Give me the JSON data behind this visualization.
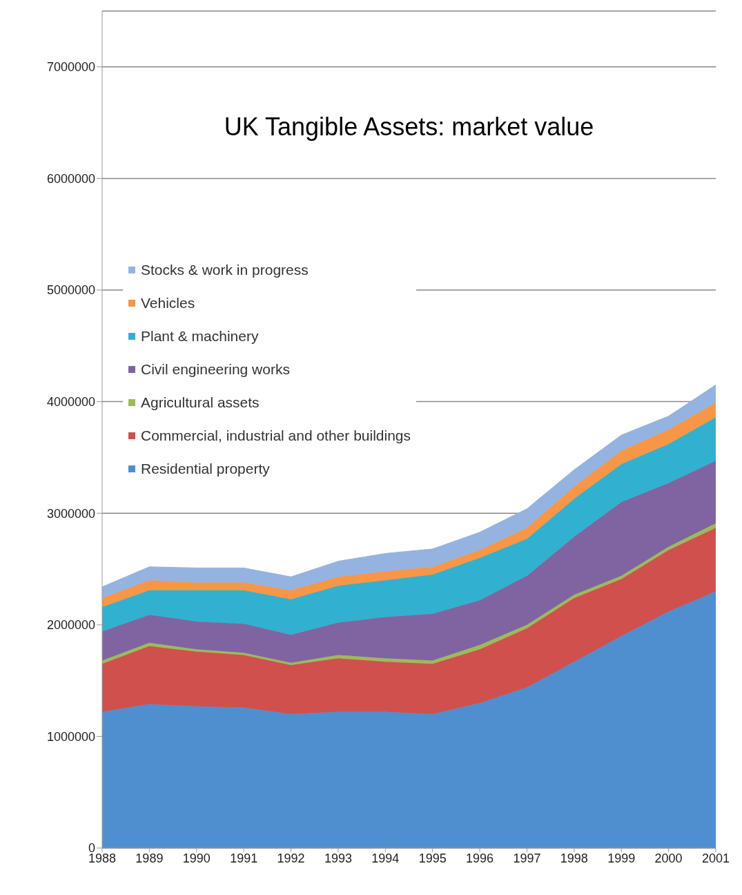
{
  "chart_data": {
    "type": "area",
    "title": "UK Tangible Assets: market value",
    "stacked": true,
    "categories": [
      "1988",
      "1989",
      "1990",
      "1991",
      "1992",
      "1993",
      "1994",
      "1995",
      "1996",
      "1997",
      "1998",
      "1999",
      "2000",
      "2001"
    ],
    "series": [
      {
        "name": "Residential property",
        "color": "#4f8fcf",
        "values": [
          1220000,
          1290000,
          1270000,
          1260000,
          1200000,
          1220000,
          1220000,
          1200000,
          1300000,
          1440000,
          1670000,
          1900000,
          2120000,
          2300000
        ]
      },
      {
        "name": "Commercial, industrial and other buildings",
        "color": "#d0504d",
        "values": [
          430000,
          520000,
          490000,
          470000,
          440000,
          480000,
          450000,
          450000,
          480000,
          530000,
          570000,
          510000,
          550000,
          570000
        ]
      },
      {
        "name": "Agricultural assets",
        "color": "#9bbb59",
        "values": [
          30000,
          30000,
          20000,
          20000,
          20000,
          30000,
          30000,
          30000,
          40000,
          30000,
          30000,
          30000,
          30000,
          40000
        ]
      },
      {
        "name": "Civil engineering works",
        "color": "#8064a2",
        "values": [
          260000,
          250000,
          250000,
          260000,
          250000,
          290000,
          370000,
          420000,
          400000,
          440000,
          520000,
          660000,
          570000,
          560000
        ]
      },
      {
        "name": "Plant & machinery",
        "color": "#31b1cf",
        "values": [
          220000,
          220000,
          280000,
          300000,
          320000,
          330000,
          330000,
          350000,
          380000,
          330000,
          340000,
          340000,
          350000,
          390000
        ]
      },
      {
        "name": "Vehicles",
        "color": "#f79646",
        "values": [
          80000,
          90000,
          70000,
          70000,
          80000,
          80000,
          80000,
          70000,
          70000,
          100000,
          110000,
          120000,
          130000,
          130000
        ]
      },
      {
        "name": "Stocks & work in progress",
        "color": "#95b3e0",
        "values": [
          100000,
          120000,
          130000,
          130000,
          120000,
          140000,
          160000,
          160000,
          160000,
          170000,
          150000,
          140000,
          120000,
          160000
        ]
      }
    ],
    "ylim": [
      0,
      7500000
    ],
    "yticks": [
      0,
      1000000,
      2000000,
      3000000,
      4000000,
      5000000,
      6000000,
      7000000
    ],
    "grid": "y",
    "legend": "top left"
  }
}
